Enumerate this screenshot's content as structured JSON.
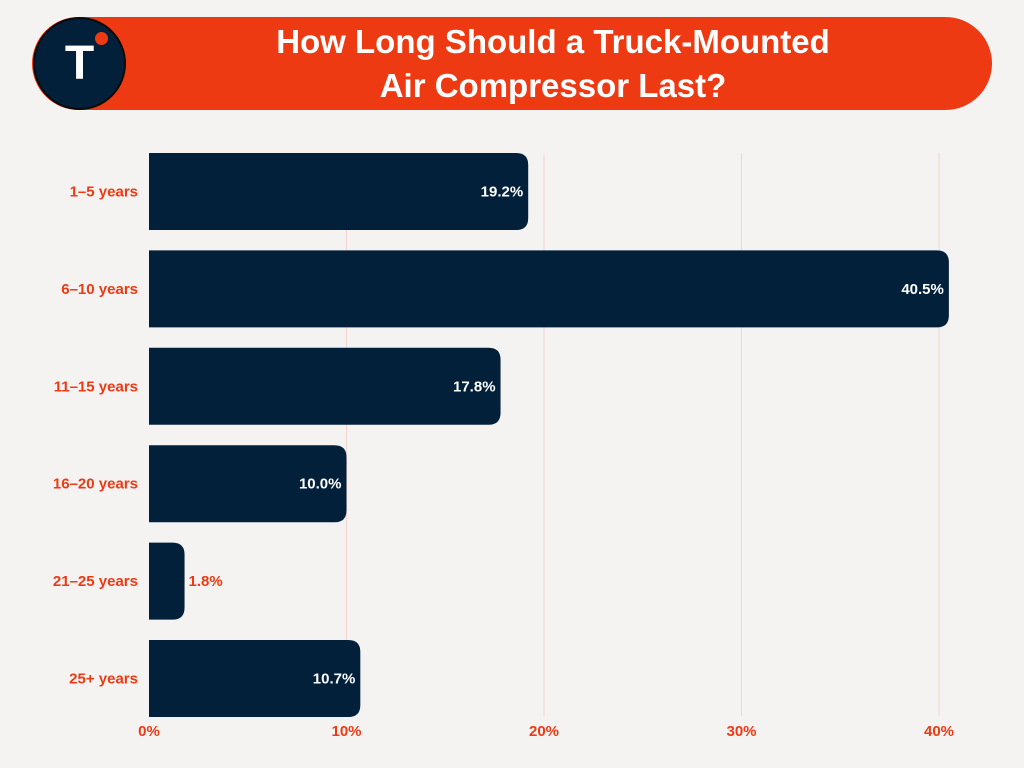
{
  "header": {
    "title_line1": "How Long Should a Truck-Mounted",
    "title_line2": "Air Compressor Last?",
    "logo_letter": "T"
  },
  "colors": {
    "background": "#f4f3f2",
    "accent": "#ee3a13",
    "bar": "#02203a",
    "gridline": "#f2d4d0"
  },
  "chart_data": {
    "type": "bar",
    "orientation": "horizontal",
    "title": "How Long Should a Truck-Mounted Air Compressor Last?",
    "categories": [
      "1–5 years",
      "6–10 years",
      "11–15 years",
      "16–20 years",
      "21–25 years",
      "25+ years"
    ],
    "values": [
      19.2,
      40.5,
      17.8,
      10.0,
      1.8,
      10.7
    ],
    "value_labels": [
      "19.2%",
      "40.5%",
      "17.8%",
      "10.0%",
      "1.8%",
      "10.7%"
    ],
    "xlim": [
      0,
      40
    ],
    "xticks": [
      0,
      10,
      20,
      30,
      40
    ],
    "xtick_labels": [
      "0%",
      "10%",
      "20%",
      "30%",
      "40%"
    ],
    "xlabel": "",
    "ylabel": "",
    "grid": true
  }
}
